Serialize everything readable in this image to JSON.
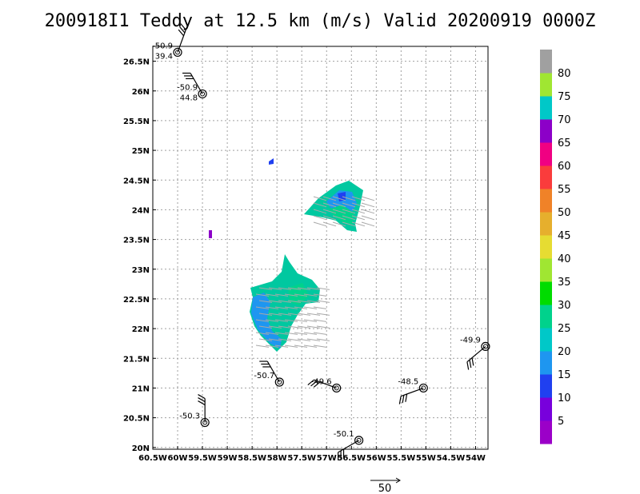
{
  "title": "200918I1 Teddy at 12.5 km (m/s) Valid 20200919 0000Z",
  "colors": {
    "background": "#ffffff",
    "grid": "#a0a0a0",
    "vector": "#a8a8a8",
    "barb": "#000000"
  },
  "chart_data": {
    "type": "map",
    "title": "200918I1 Teddy at 12.5 km (m/s) Valid 20200919 0000Z",
    "x_range_lon": [
      -60.5,
      -53.75
    ],
    "y_range_lat": [
      19.97,
      26.75
    ],
    "x_ticks": [
      {
        "lon": -60.5,
        "label": "60.5W"
      },
      {
        "lon": -60.0,
        "label": "60W"
      },
      {
        "lon": -59.5,
        "label": "59.5W"
      },
      {
        "lon": -59.0,
        "label": "59W"
      },
      {
        "lon": -58.5,
        "label": "58.5W"
      },
      {
        "lon": -58.0,
        "label": "58W"
      },
      {
        "lon": -57.5,
        "label": "57.5W"
      },
      {
        "lon": -57.0,
        "label": "57W"
      },
      {
        "lon": -56.5,
        "label": "56.5W"
      },
      {
        "lon": -56.0,
        "label": "56W"
      },
      {
        "lon": -55.5,
        "label": "55.5W"
      },
      {
        "lon": -55.0,
        "label": "55W"
      },
      {
        "lon": -54.5,
        "label": "54.5W"
      },
      {
        "lon": -54.0,
        "label": "54W"
      }
    ],
    "y_ticks": [
      {
        "lat": 20.0,
        "label": "20N"
      },
      {
        "lat": 20.5,
        "label": "20.5N"
      },
      {
        "lat": 21.0,
        "label": "21N"
      },
      {
        "lat": 21.5,
        "label": "21.5N"
      },
      {
        "lat": 22.0,
        "label": "22N"
      },
      {
        "lat": 22.5,
        "label": "22.5N"
      },
      {
        "lat": 23.0,
        "label": "23N"
      },
      {
        "lat": 23.5,
        "label": "23.5N"
      },
      {
        "lat": 24.0,
        "label": "24N"
      },
      {
        "lat": 24.5,
        "label": "24.5N"
      },
      {
        "lat": 25.0,
        "label": "25N"
      },
      {
        "lat": 25.5,
        "label": "25.5N"
      },
      {
        "lat": 26.0,
        "label": "26N"
      },
      {
        "lat": 26.5,
        "label": "26.5N"
      }
    ],
    "grid": true,
    "colorbar": {
      "labels": [
        "5",
        "10",
        "15",
        "20",
        "25",
        "30",
        "35",
        "40",
        "45",
        "50",
        "55",
        "60",
        "65",
        "70",
        "75",
        "80"
      ],
      "colors": [
        "#9b00c8",
        "#7800dc",
        "#2040f0",
        "#1e96f0",
        "#00c8c8",
        "#00d28c",
        "#00dc00",
        "#a0e632",
        "#e6dc32",
        "#e6af2d",
        "#f08228",
        "#fa3c3c",
        "#f00082",
        "#8c00c8",
        "#00c8c8",
        "#a0e632",
        "#a0a0a0"
      ]
    },
    "observations": [
      {
        "lon": -60.0,
        "lat": 26.65,
        "label1": "-50.9",
        "label2": "39.4",
        "barb_dir": 20
      },
      {
        "lon": -59.5,
        "lat": 25.95,
        "label1": "-50.9",
        "label2": "44.8",
        "barb_dir": 330
      },
      {
        "lon": -57.95,
        "lat": 21.1,
        "label1": "-50.7",
        "label2": "",
        "barb_dir": 330
      },
      {
        "lon": -56.8,
        "lat": 21.0,
        "label1": "-49.6",
        "label2": "",
        "barb_dir": 290
      },
      {
        "lon": -55.05,
        "lat": 21.0,
        "label1": "-48.5",
        "label2": "",
        "barb_dir": 250
      },
      {
        "lon": -53.8,
        "lat": 21.7,
        "label1": "-49.9",
        "label2": "",
        "barb_dir": 230
      },
      {
        "lon": -59.45,
        "lat": 20.42,
        "label1": "-50.3",
        "label2": "",
        "barb_dir": 0
      },
      {
        "lon": -56.35,
        "lat": 20.12,
        "label1": "-50.1",
        "label2": "",
        "barb_dir": 240
      }
    ],
    "reference_vector": {
      "label": "50"
    }
  }
}
